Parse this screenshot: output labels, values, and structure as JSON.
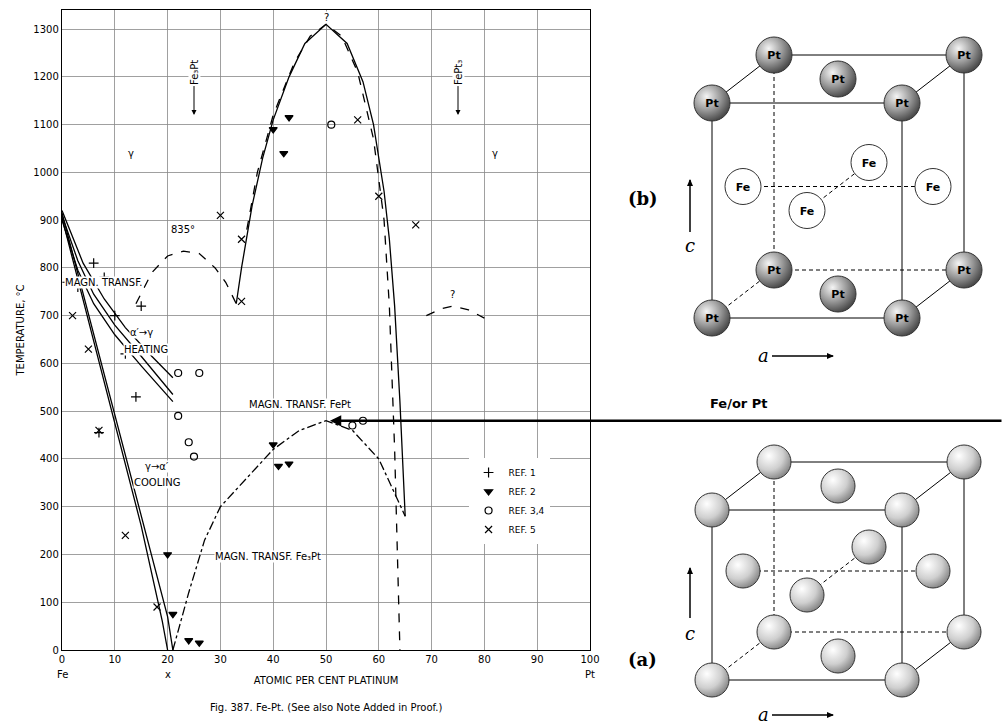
{
  "chart_data": {
    "type": "line",
    "title": "Fig. 387. Fe-Pt. (See also Note Added in Proof.)",
    "x_label": "ATOMIC PER CENT PLATINUM",
    "y_label": "TEMPERATURE, °C",
    "xlim": [
      0,
      100
    ],
    "xticks": [
      0,
      10,
      20,
      30,
      40,
      50,
      60,
      70,
      80,
      90,
      100
    ],
    "ylim": [
      0,
      1340
    ],
    "yticks": [
      0,
      100,
      200,
      300,
      400,
      500,
      600,
      700,
      800,
      900,
      1000,
      1100,
      1200,
      1300
    ],
    "grid": true,
    "legend": "right",
    "series": [
      {
        "type": "line",
        "line_style": "solid",
        "x": [
          0,
          5,
          10,
          15,
          19,
          20
        ],
        "y": [
          905,
          690,
          475,
          260,
          60,
          0
        ]
      },
      {
        "type": "line",
        "line_style": "solid",
        "x": [
          0,
          5,
          10,
          15,
          20,
          21
        ],
        "y": [
          915,
          705,
          495,
          285,
          70,
          0
        ]
      },
      {
        "type": "line",
        "line_style": "solid",
        "x": [
          0,
          3,
          6,
          10,
          15,
          21
        ],
        "y": [
          910,
          815,
          745,
          680,
          615,
          535
        ]
      },
      {
        "type": "line",
        "line_style": "solid",
        "x": [
          0,
          3,
          6,
          10,
          15,
          21
        ],
        "y": [
          900,
          795,
          725,
          660,
          595,
          520
        ]
      },
      {
        "type": "line",
        "line_style": "solid",
        "x": [
          0,
          4,
          8,
          12,
          17,
          21
        ],
        "y": [
          920,
          810,
          735,
          675,
          615,
          570
        ]
      },
      {
        "type": "line",
        "line_style": "dash",
        "x": [
          14,
          17,
          20,
          23,
          26,
          29,
          31,
          33
        ],
        "y": [
          725,
          790,
          825,
          835,
          830,
          800,
          770,
          725
        ]
      },
      {
        "type": "line",
        "line_style": "solid",
        "x": [
          33,
          34,
          36,
          38,
          40,
          43,
          46,
          50,
          54,
          57,
          59,
          61,
          62,
          63,
          64,
          65
        ],
        "y": [
          725,
          800,
          930,
          1030,
          1110,
          1200,
          1270,
          1310,
          1270,
          1190,
          1100,
          960,
          860,
          720,
          520,
          280
        ]
      },
      {
        "type": "line",
        "line_style": "dash",
        "x": [
          35,
          37,
          40,
          44,
          47,
          50,
          53,
          56,
          59,
          61,
          62,
          63,
          64
        ],
        "y": [
          880,
          1000,
          1120,
          1230,
          1285,
          1310,
          1285,
          1210,
          1070,
          900,
          720,
          420,
          0
        ]
      },
      {
        "type": "line",
        "line_style": "dashdot",
        "x": [
          21,
          24,
          27,
          30,
          35,
          40,
          45,
          50,
          55,
          60,
          65
        ],
        "y": [
          0,
          120,
          230,
          300,
          360,
          420,
          460,
          480,
          460,
          400,
          280
        ]
      },
      {
        "type": "line",
        "line_style": "dash",
        "x": [
          69,
          72,
          74,
          77,
          80
        ],
        "y": [
          700,
          715,
          720,
          712,
          695
        ]
      }
    ],
    "points": [
      {
        "name": "REF. 1",
        "marker": "plus",
        "x": [
          1,
          3,
          6,
          8,
          10,
          12,
          15,
          7,
          14
        ],
        "y": [
          770,
          760,
          810,
          780,
          700,
          620,
          720,
          455,
          530
        ]
      },
      {
        "name": "REF. 2",
        "marker": "triangle",
        "x": [
          40,
          42,
          43,
          40,
          41,
          43,
          20,
          21,
          24,
          26
        ],
        "y": [
          1090,
          1040,
          1115,
          430,
          385,
          390,
          200,
          75,
          20,
          15
        ]
      },
      {
        "name": "REF. 3,4",
        "marker": "circle",
        "x": [
          22,
          22,
          24,
          25,
          26,
          51,
          55,
          57
        ],
        "y": [
          580,
          490,
          435,
          405,
          580,
          1100,
          470,
          480
        ]
      },
      {
        "name": "REF. 5",
        "marker": "x",
        "x": [
          2,
          5,
          7,
          12,
          18,
          30,
          56,
          60,
          67,
          34,
          34
        ],
        "y": [
          700,
          630,
          460,
          240,
          90,
          910,
          1110,
          950,
          890,
          860,
          730
        ]
      }
    ],
    "annotations": [
      {
        "text": "γ",
        "x": 13,
        "y": 1040
      },
      {
        "text": "γ",
        "x": 82,
        "y": 1040
      },
      {
        "text": "835°",
        "x": 23,
        "y": 880
      },
      {
        "text": "MAGN. TRANSF.",
        "x": 8,
        "y": 770
      },
      {
        "text": "α′→γ",
        "x": 15,
        "y": 665
      },
      {
        "text": "HEATING",
        "x": 16,
        "y": 630
      },
      {
        "text": "γ→α′",
        "x": 18,
        "y": 385
      },
      {
        "text": "COOLING",
        "x": 18,
        "y": 350
      },
      {
        "text": "MAGN. TRANSF. FePt",
        "x": 45,
        "y": 515
      },
      {
        "text": "MAGN. TRANSF. Fe₃Pt",
        "x": 39,
        "y": 195
      },
      {
        "text": "?",
        "x": 50,
        "y": 1325
      },
      {
        "text": "?",
        "x": 74,
        "y": 745
      }
    ],
    "vertical_labels": [
      {
        "text": "Fe₃Pt",
        "x": 25,
        "y": 1120
      },
      {
        "text": "FePt₃",
        "x": 75,
        "y": 1120
      }
    ],
    "axis_marks": [
      {
        "text": "Fe",
        "x": 0
      },
      {
        "text": "x",
        "x": 20
      },
      {
        "text": "Pt",
        "x": 100
      }
    ]
  },
  "diagrams": [
    {
      "label": "(b)",
      "axis_c": "c",
      "axis_a": "a",
      "corner_atom": "Pt",
      "side_atom": "Fe"
    },
    {
      "label": "(a)",
      "axis_c": "c",
      "axis_a": "a",
      "title": "Fe/or Pt"
    }
  ]
}
